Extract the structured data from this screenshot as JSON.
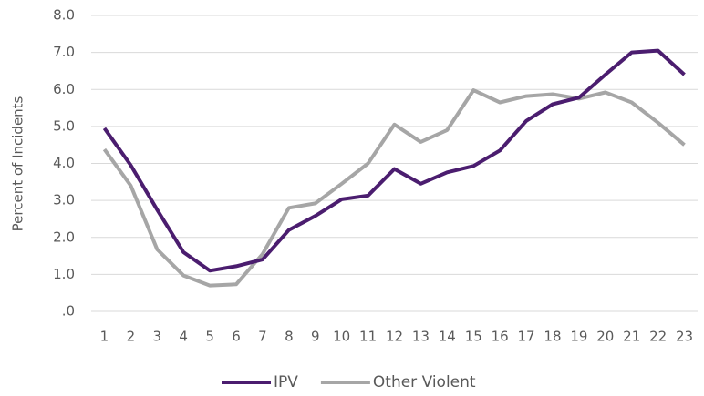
{
  "chart_data": {
    "type": "line",
    "y_label": "Percent of Incidents",
    "categories": [
      "1",
      "2",
      "3",
      "4",
      "5",
      "6",
      "7",
      "8",
      "9",
      "10",
      "11",
      "12",
      "13",
      "14",
      "15",
      "16",
      "17",
      "18",
      "19",
      "20",
      "21",
      "22",
      "23"
    ],
    "series": [
      {
        "name": "IPV",
        "color": "#4b1d6f",
        "values": [
          4.95,
          3.95,
          2.75,
          1.6,
          1.1,
          1.22,
          1.4,
          2.2,
          2.58,
          3.03,
          3.13,
          3.85,
          3.45,
          3.76,
          3.93,
          4.35,
          5.15,
          5.6,
          5.78,
          6.4,
          7.0,
          7.05,
          6.4
        ]
      },
      {
        "name": "Other Violent",
        "color": "#a6a6a6",
        "values": [
          4.38,
          3.4,
          1.68,
          0.97,
          0.7,
          0.73,
          1.55,
          2.8,
          2.92,
          3.45,
          4.0,
          5.05,
          4.58,
          4.9,
          5.98,
          5.65,
          5.82,
          5.87,
          5.75,
          5.92,
          5.65,
          5.1,
          4.5
        ]
      }
    ],
    "ylim": [
      0,
      8
    ],
    "yticks": [
      {
        "value": 0,
        "label": ".0"
      },
      {
        "value": 1,
        "label": "1.0"
      },
      {
        "value": 2,
        "label": "2.0"
      },
      {
        "value": 3,
        "label": "3.0"
      },
      {
        "value": 4,
        "label": "4.0"
      },
      {
        "value": 5,
        "label": "5.0"
      },
      {
        "value": 6,
        "label": "6.0"
      },
      {
        "value": 7,
        "label": "7.0"
      },
      {
        "value": 8,
        "label": "8.0"
      }
    ],
    "grid": true,
    "legend": "bottom"
  }
}
